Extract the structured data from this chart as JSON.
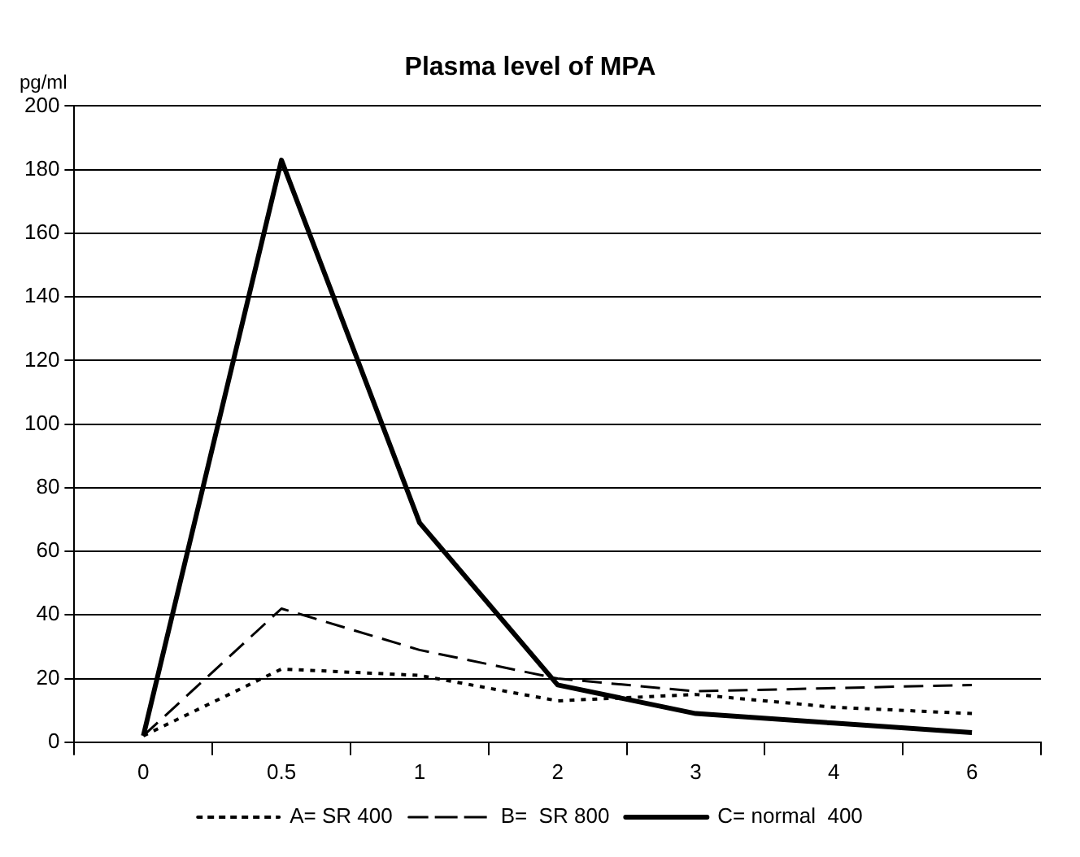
{
  "chart_data": {
    "type": "line",
    "title": "Plasma level of MPA",
    "ylabel": "pg/ml",
    "categories": [
      "0",
      "0.5",
      "1",
      "2",
      "3",
      "4",
      "6"
    ],
    "series": [
      {
        "name": "A= SR 400",
        "color": "#000000",
        "line_style": "dotted",
        "values": [
          2,
          23,
          21,
          13,
          15,
          11,
          9
        ]
      },
      {
        "name": "B=  SR 800",
        "color": "#000000",
        "line_style": "dashed",
        "values": [
          2,
          42,
          29,
          20,
          16,
          17,
          18
        ]
      },
      {
        "name": "C= normal  400",
        "color": "#000000",
        "line_style": "solid",
        "values": [
          2,
          183,
          69,
          18,
          9,
          6,
          3
        ]
      }
    ],
    "ylim": [
      0,
      200
    ],
    "yticks": [
      0,
      20,
      40,
      60,
      80,
      100,
      120,
      140,
      160,
      180,
      200
    ],
    "grid": "y",
    "legend": "bottom",
    "marker": "none"
  }
}
